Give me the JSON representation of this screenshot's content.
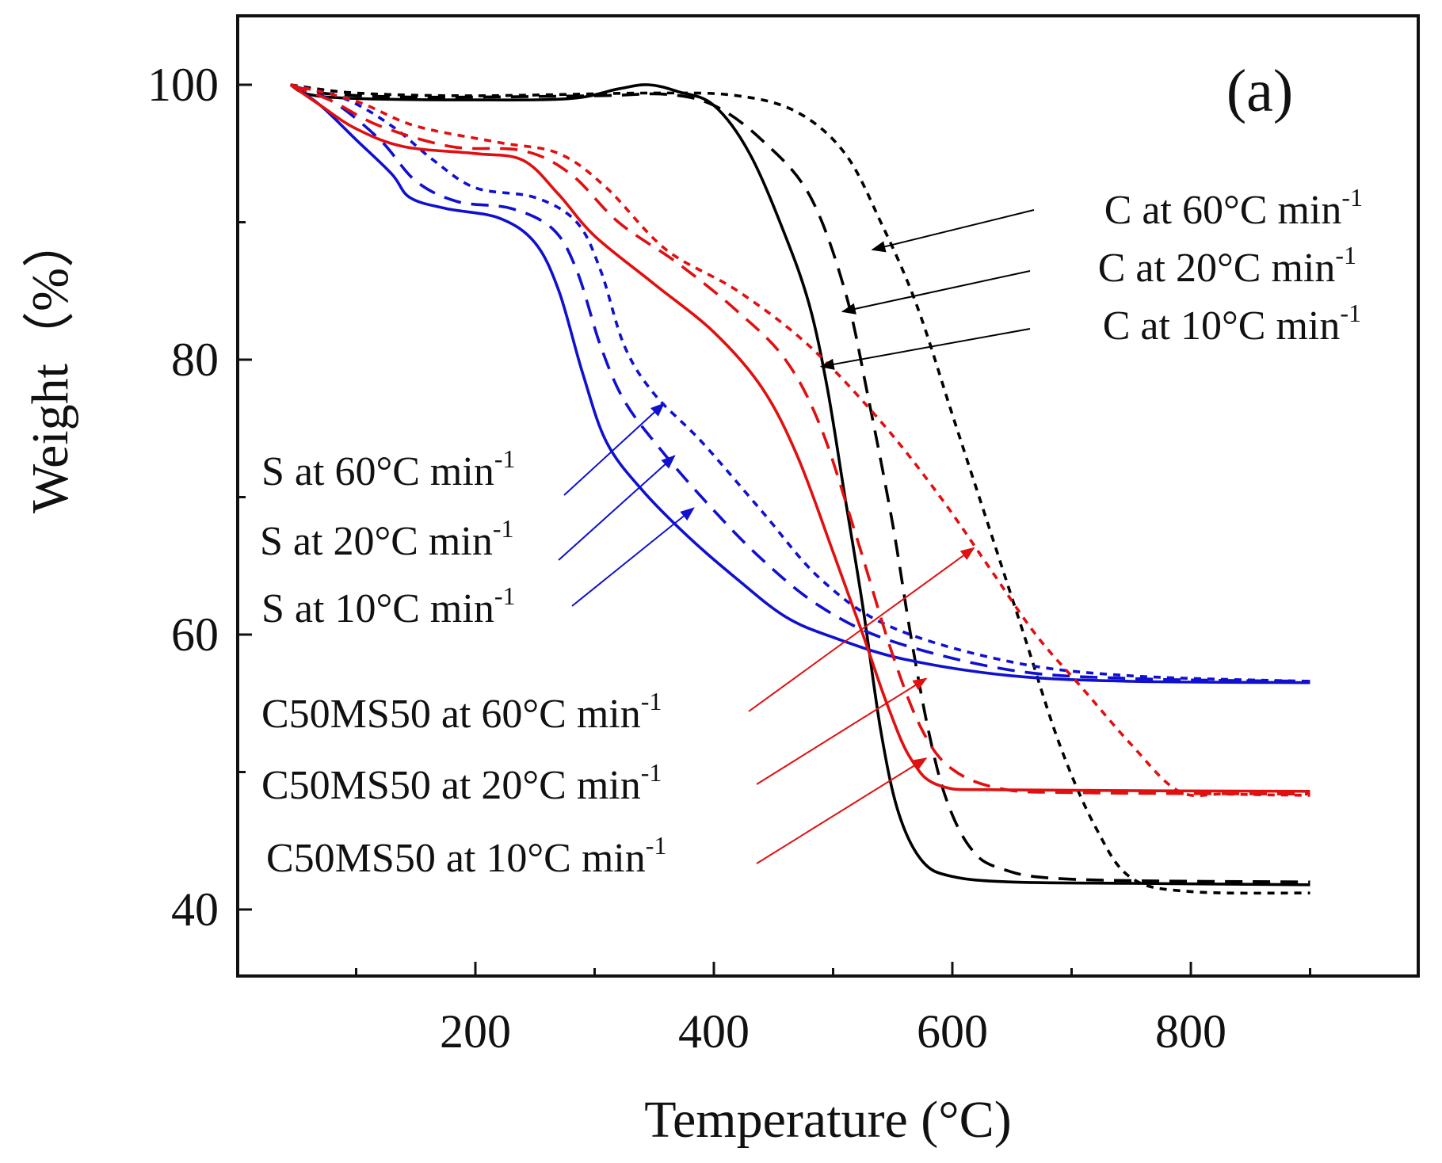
{
  "chart_data": {
    "type": "line",
    "panel_label": "(a)",
    "xlabel": "Temperature (°C)",
    "ylabel": "Weight（%）",
    "xlim": [
      0,
      1000
    ],
    "ylim": [
      35,
      105
    ],
    "xticks": [
      200,
      400,
      600,
      800
    ],
    "yticks": [
      40,
      60,
      80,
      100
    ],
    "x_minor_ticks": [
      100,
      300,
      500,
      700,
      900
    ],
    "y_minor_ticks": [
      50,
      70,
      90
    ],
    "colors": {
      "C": "#000000",
      "S": "#1010d0",
      "C50MS50": "#e01010"
    },
    "series": [
      {
        "name": "C at 10°C min-1",
        "group": "C",
        "dash": "solid",
        "color": "#000000",
        "points": [
          [
            45,
            100
          ],
          [
            60,
            99.3
          ],
          [
            100,
            99
          ],
          [
            200,
            98.9
          ],
          [
            280,
            99
          ],
          [
            320,
            99.7
          ],
          [
            345,
            100
          ],
          [
            370,
            99.5
          ],
          [
            400,
            98.5
          ],
          [
            430,
            95
          ],
          [
            460,
            89
          ],
          [
            480,
            84
          ],
          [
            495,
            78
          ],
          [
            510,
            70
          ],
          [
            525,
            62
          ],
          [
            540,
            53
          ],
          [
            555,
            47
          ],
          [
            575,
            43.5
          ],
          [
            600,
            42.4
          ],
          [
            650,
            42
          ],
          [
            750,
            41.9
          ],
          [
            900,
            41.8
          ]
        ]
      },
      {
        "name": "C at 20°C min-1",
        "group": "C",
        "dash": "dashed",
        "color": "#000000",
        "points": [
          [
            45,
            100
          ],
          [
            70,
            99.4
          ],
          [
            150,
            99.1
          ],
          [
            300,
            99.2
          ],
          [
            360,
            99.3
          ],
          [
            400,
            98.5
          ],
          [
            440,
            96
          ],
          [
            480,
            92
          ],
          [
            510,
            85
          ],
          [
            530,
            77
          ],
          [
            550,
            68
          ],
          [
            565,
            60
          ],
          [
            580,
            53
          ],
          [
            595,
            48
          ],
          [
            615,
            44.5
          ],
          [
            640,
            43
          ],
          [
            700,
            42.2
          ],
          [
            900,
            42
          ]
        ]
      },
      {
        "name": "C at 60°C min-1",
        "group": "C",
        "dash": "dotted",
        "color": "#000000",
        "points": [
          [
            45,
            100
          ],
          [
            100,
            99.4
          ],
          [
            200,
            99.2
          ],
          [
            350,
            99.4
          ],
          [
            420,
            99.2
          ],
          [
            470,
            98
          ],
          [
            510,
            95
          ],
          [
            540,
            90
          ],
          [
            570,
            84
          ],
          [
            600,
            76
          ],
          [
            630,
            68
          ],
          [
            660,
            60
          ],
          [
            690,
            52
          ],
          [
            720,
            46
          ],
          [
            750,
            42.3
          ],
          [
            800,
            41.3
          ],
          [
            900,
            41.2
          ]
        ]
      },
      {
        "name": "S at 10°C min-1",
        "group": "S",
        "dash": "solid",
        "color": "#1010d0",
        "points": [
          [
            45,
            100
          ],
          [
            70,
            98.5
          ],
          [
            100,
            96
          ],
          [
            130,
            93.5
          ],
          [
            145,
            91.8
          ],
          [
            175,
            91
          ],
          [
            220,
            90.3
          ],
          [
            250,
            88.5
          ],
          [
            270,
            85
          ],
          [
            290,
            79
          ],
          [
            310,
            74
          ],
          [
            340,
            70.5
          ],
          [
            380,
            67
          ],
          [
            420,
            64
          ],
          [
            460,
            61.3
          ],
          [
            500,
            59.8
          ],
          [
            560,
            58.2
          ],
          [
            650,
            57
          ],
          [
            750,
            56.6
          ],
          [
            900,
            56.5
          ]
        ]
      },
      {
        "name": "S at 20°C min-1",
        "group": "S",
        "dash": "dashed",
        "color": "#1010d0",
        "points": [
          [
            45,
            100
          ],
          [
            80,
            98.8
          ],
          [
            120,
            96
          ],
          [
            150,
            93
          ],
          [
            185,
            91.5
          ],
          [
            230,
            91
          ],
          [
            265,
            89.5
          ],
          [
            285,
            86.5
          ],
          [
            305,
            81
          ],
          [
            325,
            77
          ],
          [
            355,
            73.5
          ],
          [
            395,
            69.5
          ],
          [
            440,
            65.5
          ],
          [
            490,
            62
          ],
          [
            550,
            59.5
          ],
          [
            650,
            57.4
          ],
          [
            750,
            56.8
          ],
          [
            900,
            56.6
          ]
        ]
      },
      {
        "name": "S at 60°C min-1",
        "group": "S",
        "dash": "dotted",
        "color": "#1010d0",
        "points": [
          [
            45,
            100
          ],
          [
            90,
            99
          ],
          [
            130,
            97
          ],
          [
            165,
            94.5
          ],
          [
            200,
            92.5
          ],
          [
            250,
            91.8
          ],
          [
            285,
            90
          ],
          [
            305,
            86.5
          ],
          [
            325,
            81
          ],
          [
            350,
            77.5
          ],
          [
            390,
            74
          ],
          [
            440,
            69
          ],
          [
            490,
            64
          ],
          [
            550,
            60.5
          ],
          [
            650,
            58
          ],
          [
            750,
            57
          ],
          [
            900,
            56.6
          ]
        ]
      },
      {
        "name": "C50MS50 at 10°C min-1",
        "group": "C50MS50",
        "dash": "solid",
        "color": "#e01010",
        "points": [
          [
            45,
            100
          ],
          [
            70,
            98.5
          ],
          [
            100,
            96.8
          ],
          [
            140,
            95.5
          ],
          [
            200,
            95
          ],
          [
            240,
            94.5
          ],
          [
            270,
            92
          ],
          [
            300,
            89
          ],
          [
            350,
            85.5
          ],
          [
            400,
            82
          ],
          [
            440,
            78
          ],
          [
            470,
            73
          ],
          [
            500,
            66
          ],
          [
            525,
            60
          ],
          [
            545,
            55
          ],
          [
            565,
            51
          ],
          [
            590,
            49
          ],
          [
            650,
            48.7
          ],
          [
            900,
            48.6
          ]
        ]
      },
      {
        "name": "C50MS50 at 20°C min-1",
        "group": "C50MS50",
        "dash": "dashed",
        "color": "#e01010",
        "points": [
          [
            45,
            100
          ],
          [
            80,
            98.8
          ],
          [
            120,
            97
          ],
          [
            180,
            95.5
          ],
          [
            240,
            95.2
          ],
          [
            280,
            93.5
          ],
          [
            320,
            90
          ],
          [
            370,
            87
          ],
          [
            420,
            83.5
          ],
          [
            460,
            80
          ],
          [
            490,
            75
          ],
          [
            520,
            67
          ],
          [
            550,
            58.5
          ],
          [
            575,
            53
          ],
          [
            600,
            50.2
          ],
          [
            640,
            48.8
          ],
          [
            700,
            48.5
          ],
          [
            900,
            48.4
          ]
        ]
      },
      {
        "name": "C50MS50 at 60°C min-1",
        "group": "C50MS50",
        "dash": "dotted",
        "color": "#e01010",
        "points": [
          [
            45,
            100
          ],
          [
            100,
            98.8
          ],
          [
            150,
            97
          ],
          [
            220,
            95.8
          ],
          [
            270,
            95
          ],
          [
            310,
            92.5
          ],
          [
            360,
            88
          ],
          [
            420,
            85
          ],
          [
            480,
            81
          ],
          [
            540,
            75.5
          ],
          [
            590,
            70
          ],
          [
            630,
            65
          ],
          [
            670,
            60
          ],
          [
            710,
            56
          ],
          [
            750,
            52
          ],
          [
            790,
            48.6
          ],
          [
            830,
            48.4
          ],
          [
            900,
            48.3
          ]
        ]
      }
    ],
    "annotations": [
      {
        "label": "C at 60°C min",
        "sup": "-1",
        "series": "C at 60°C min-1",
        "target": [
          533,
          88
        ],
        "side": "right"
      },
      {
        "label": "C at 20°C min",
        "sup": "-1",
        "series": "C at 20°C min-1",
        "target": [
          508,
          83.5
        ],
        "side": "right"
      },
      {
        "label": "C at 10°C min",
        "sup": "-1",
        "series": "C at 10°C min-1",
        "target": [
          490,
          79.5
        ],
        "side": "right"
      },
      {
        "label": "S at 60°C min",
        "sup": "-1",
        "series": "S at 60°C min-1",
        "target": [
          358,
          76.8
        ],
        "side": "left"
      },
      {
        "label": "S at 20°C min",
        "sup": "-1",
        "series": "S at 20°C min-1",
        "target": [
          367,
          73
        ],
        "side": "left"
      },
      {
        "label": "S at 10°C min",
        "sup": "-1",
        "series": "S at 10°C min-1",
        "target": [
          383,
          69.2
        ],
        "side": "left"
      },
      {
        "label": "C50MS50 at 60°C min",
        "sup": "-1",
        "series": "C50MS50 at 60°C min-1",
        "target": [
          618,
          66.3
        ],
        "side": "left"
      },
      {
        "label": "C50MS50 at 20°C min",
        "sup": "-1",
        "series": "C50MS50 at 20°C min-1",
        "target": [
          578,
          56.8
        ],
        "side": "left"
      },
      {
        "label": "C50MS50 at 10°C min",
        "sup": "-1",
        "series": "C50MS50 at 10°C min-1",
        "target": [
          578,
          51
        ],
        "side": "left"
      }
    ]
  }
}
